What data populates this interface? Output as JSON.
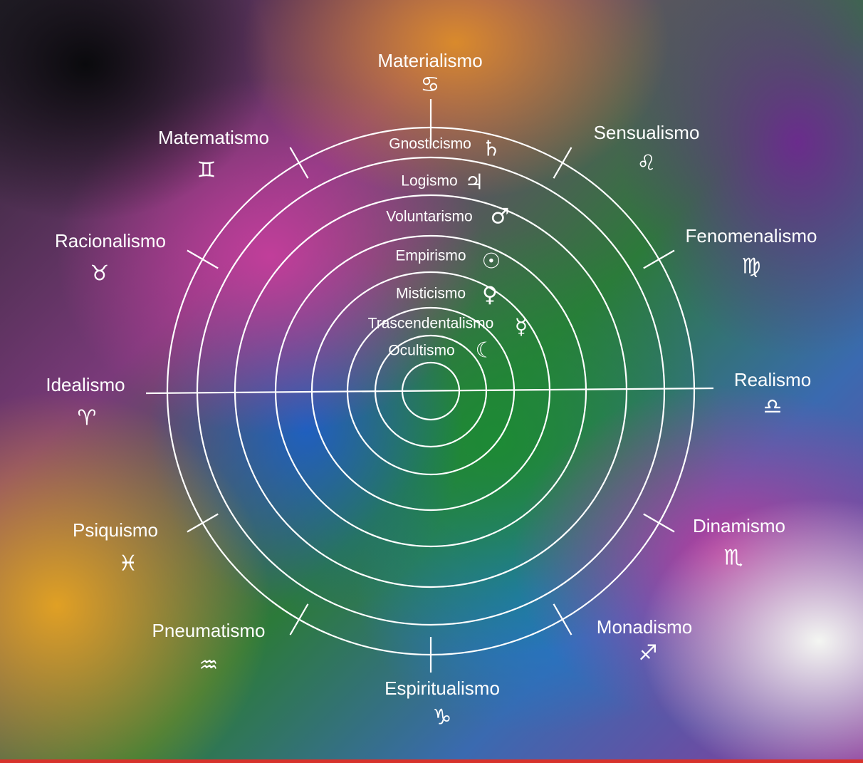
{
  "outer": [
    {
      "label": "Materialismo",
      "symbol": "♋"
    },
    {
      "label": "Sensualismo",
      "symbol": "♌"
    },
    {
      "label": "Fenomenalismo",
      "symbol": "♍"
    },
    {
      "label": "Realismo",
      "symbol": "♎"
    },
    {
      "label": "Dinamismo",
      "symbol": "♏"
    },
    {
      "label": "Monadismo",
      "symbol": "♐"
    },
    {
      "label": "Espiritualismo",
      "symbol": "♑"
    },
    {
      "label": "Pneumatismo",
      "symbol": "♒"
    },
    {
      "label": "Psiquismo",
      "symbol": "♓"
    },
    {
      "label": "Idealismo",
      "symbol": "♈"
    },
    {
      "label": "Racionalismo",
      "symbol": "♉"
    },
    {
      "label": "Matematismo",
      "symbol": "♊"
    }
  ],
  "inner": [
    {
      "label": "Gnosticismo",
      "symbol": "♄"
    },
    {
      "label": "Logismo",
      "symbol": "♃"
    },
    {
      "label": "Voluntarismo",
      "symbol": "♂"
    },
    {
      "label": "Empirismo",
      "symbol": "☉"
    },
    {
      "label": "Misticismo",
      "symbol": "♀"
    },
    {
      "label": "Trascendentalismo",
      "symbol": "☿"
    },
    {
      "label": "Ocultismo",
      "symbol": "☾"
    }
  ]
}
